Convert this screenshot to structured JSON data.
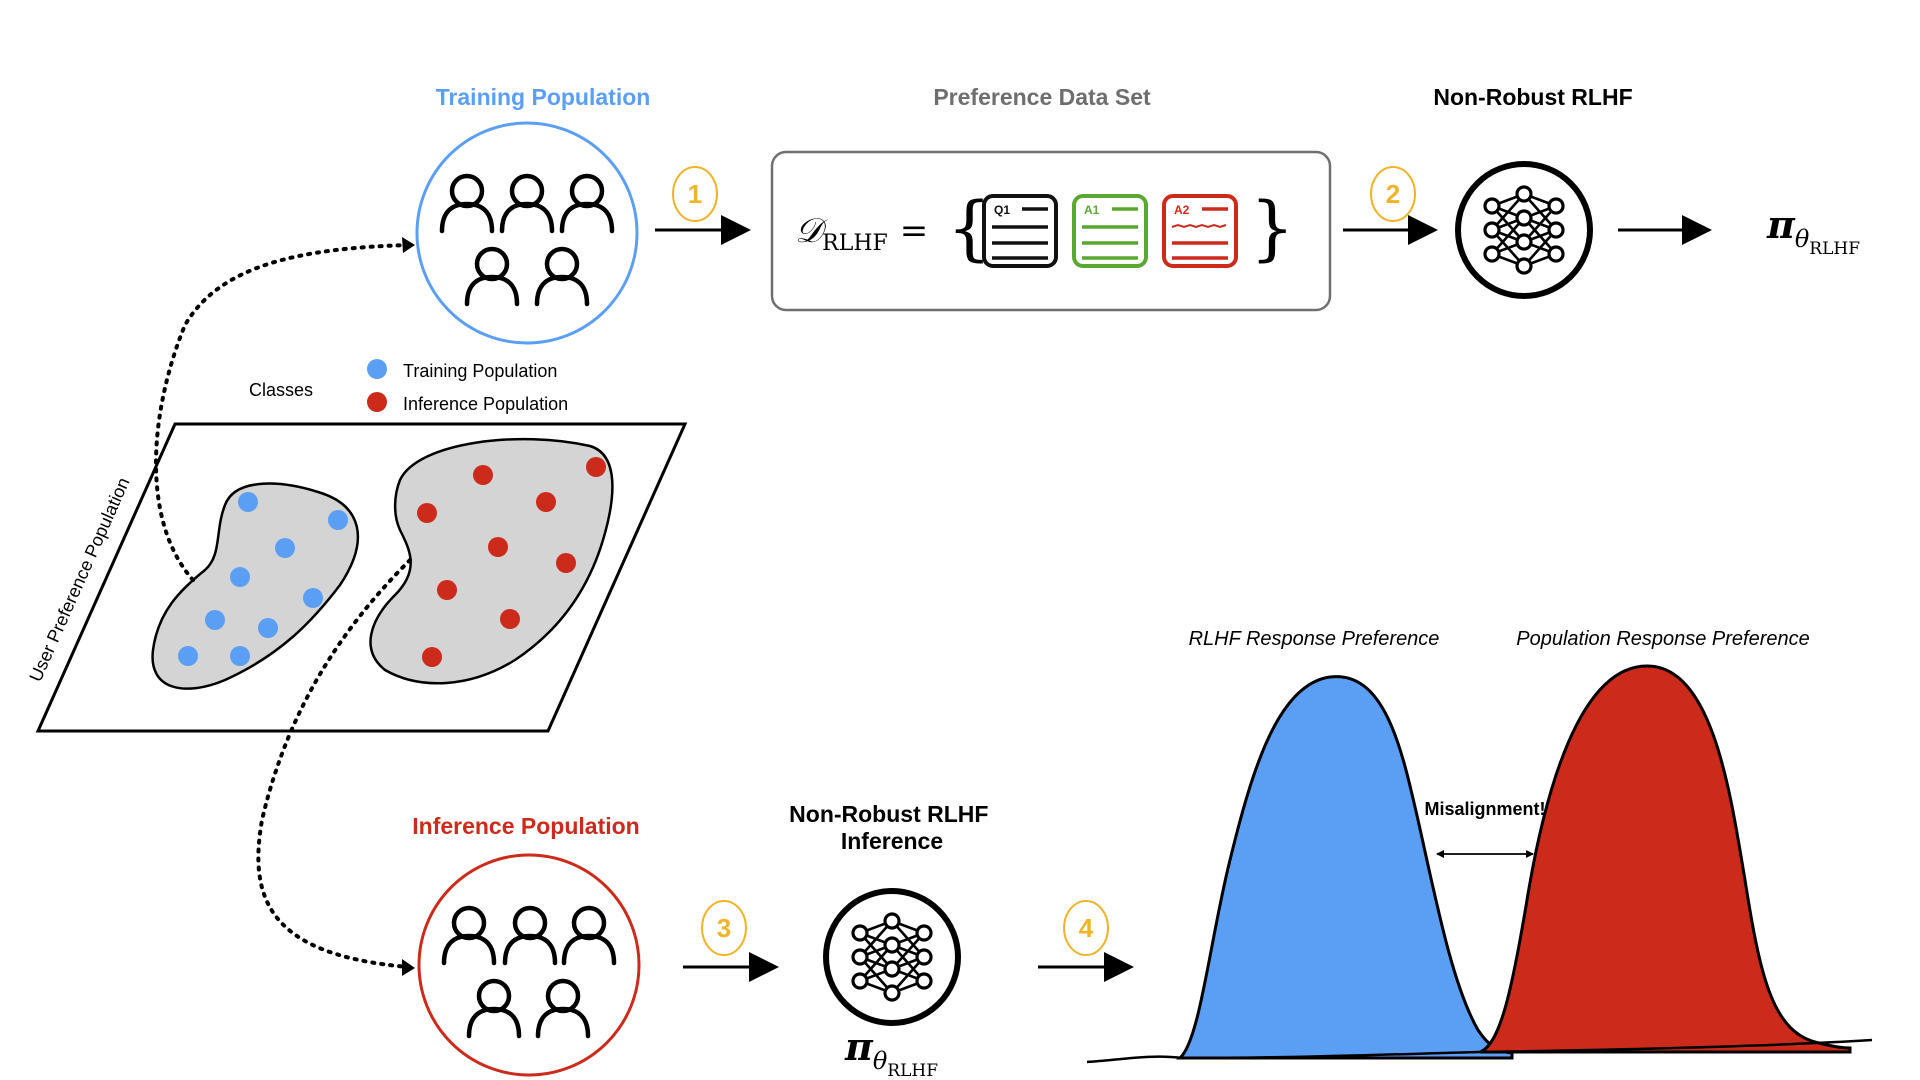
{
  "titles": {
    "training_population": "Training Population",
    "preference_data_set": "Preference Data Set",
    "non_robust_rlhf": "Non-Robust RLHF",
    "inference_population": "Inference Population",
    "non_robust_rlhf_inference_line1": "Non-Robust RLHF",
    "non_robust_rlhf_inference_line2": "Inference"
  },
  "steps": [
    "1",
    "2",
    "3",
    "4"
  ],
  "dataset": {
    "symbol": "𝒟",
    "subscript": "RLHF",
    "equals": "=",
    "open_brace": "{",
    "close_brace": "}",
    "cards": [
      {
        "label": "Q1",
        "color": "#111111"
      },
      {
        "label": "A1",
        "color": "#5aa832"
      },
      {
        "label": "A2",
        "color": "#cc2a1a"
      }
    ]
  },
  "policy": {
    "symbol": "π",
    "theta": "θ",
    "subscript": "RLHF"
  },
  "legend": {
    "title": "Classes",
    "items": [
      {
        "label": "Training Population",
        "color": "#5b9ff5"
      },
      {
        "label": "Inference Population",
        "color": "#cc2a1a"
      }
    ]
  },
  "population_plane_label": "User Preference Population",
  "distributions": {
    "left_label": "RLHF Response Preference",
    "right_label": "Population Response Preference",
    "gap_label": "Misalignment!",
    "left_color": "#5b9ff5",
    "right_color": "#cc2a1a"
  },
  "colors": {
    "training_accent": "#5b9ff5",
    "inference_accent": "#cc2a1a",
    "step_badge": "#f0b429",
    "dataset_title": "#6e6e6e"
  }
}
